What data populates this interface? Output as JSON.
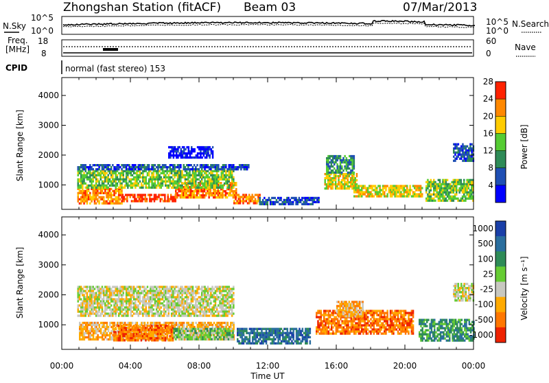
{
  "header": {
    "station_title": "Zhongshan Station (fitACF)",
    "beam": "Beam 03",
    "date": "07/Mar/2013"
  },
  "top_panels": {
    "nsky_label": "N.Sky",
    "nsky_ticks": [
      "10^5",
      "10^0"
    ],
    "nsearch_label": "N.Search",
    "nsearch_ticks": [
      "10^5",
      "10^0"
    ],
    "freq_label_line1": "Freq.",
    "freq_label_line2": "[MHz]",
    "freq_ticks": [
      "18",
      "8"
    ],
    "nave_label": "Nave",
    "nave_ticks": [
      "60",
      "0"
    ],
    "cpid_label": "CPID",
    "cpid_text": "normal (fast stereo) 153"
  },
  "chart_data": [
    {
      "type": "heatmap",
      "name": "power",
      "ylabel": "Slant Range [km]",
      "xlabel": "",
      "xlim": [
        0,
        24
      ],
      "ylim": [
        180,
        4600
      ],
      "yticks": [
        1000,
        2000,
        3000,
        4000
      ],
      "xticks": [
        0,
        4,
        8,
        12,
        16,
        20,
        24
      ],
      "colorbar": {
        "label": "Power [dB]",
        "ticks": [
          "4",
          "8",
          "12",
          "16",
          "20",
          "24",
          "28"
        ],
        "colors": [
          "#0000ff",
          "#1f4fb4",
          "#2e8b57",
          "#55cc33",
          "#ffcc00",
          "#ff8800",
          "#ff2200"
        ]
      },
      "regions": [
        {
          "t0": 0.9,
          "t1": 3.5,
          "r0": 400,
          "r1": 900,
          "level": 5
        },
        {
          "t0": 3.5,
          "t1": 6.6,
          "r0": 450,
          "r1": 700,
          "level": 6
        },
        {
          "t0": 6.6,
          "t1": 10.2,
          "r0": 600,
          "r1": 1100,
          "level": 5
        },
        {
          "t0": 0.9,
          "t1": 10.0,
          "r0": 900,
          "r1": 1500,
          "level": 3
        },
        {
          "t0": 0.9,
          "t1": 10.9,
          "r0": 1500,
          "r1": 1700,
          "level": 1
        },
        {
          "t0": 6.2,
          "t1": 8.8,
          "r0": 1900,
          "r1": 2300,
          "level": 0
        },
        {
          "t0": 10.0,
          "t1": 11.5,
          "r0": 400,
          "r1": 700,
          "level": 5
        },
        {
          "t0": 11.5,
          "t1": 15.0,
          "r0": 350,
          "r1": 600,
          "level": 1
        },
        {
          "t0": 15.3,
          "t1": 17.2,
          "r0": 900,
          "r1": 1400,
          "level": 4
        },
        {
          "t0": 15.4,
          "t1": 17.0,
          "r0": 1400,
          "r1": 2000,
          "level": 2
        },
        {
          "t0": 17.0,
          "t1": 21.0,
          "r0": 600,
          "r1": 1000,
          "level": 4
        },
        {
          "t0": 21.2,
          "t1": 24.0,
          "r0": 500,
          "r1": 1200,
          "level": 3
        },
        {
          "t0": 22.8,
          "t1": 24.0,
          "r0": 1800,
          "r1": 2400,
          "level": 1
        }
      ]
    },
    {
      "type": "heatmap",
      "name": "velocity",
      "ylabel": "Slant Range [km]",
      "xlabel": "Time UT",
      "xlim": [
        0,
        24
      ],
      "ylim": [
        180,
        4600
      ],
      "yticks": [
        1000,
        2000,
        3000,
        4000
      ],
      "xticks": [
        0,
        4,
        8,
        12,
        16,
        20,
        24
      ],
      "xtick_labels": [
        "00:00",
        "04:00",
        "08:00",
        "12:00",
        "16:00",
        "20:00",
        "00:00"
      ],
      "colorbar": {
        "label": "Velocity [m s⁻¹]",
        "ticks": [
          "1000",
          "500",
          "100",
          "25",
          "-25",
          "-100",
          "-500",
          "-1000"
        ],
        "colors": [
          "#1a3fa8",
          "#2a6e9e",
          "#2e8b57",
          "#66cc33",
          "#c8c8c0",
          "#ffaa00",
          "#ff7700",
          "#ee2200"
        ]
      },
      "regions": [
        {
          "t0": 0.9,
          "t1": 10.0,
          "r0": 1300,
          "r1": 2300,
          "level": 4
        },
        {
          "t0": 1.0,
          "t1": 10.0,
          "r0": 500,
          "r1": 1100,
          "level": 5
        },
        {
          "t0": 3.0,
          "t1": 6.5,
          "r0": 500,
          "r1": 1000,
          "level": 6
        },
        {
          "t0": 6.5,
          "t1": 10.0,
          "r0": 500,
          "r1": 900,
          "level": 3
        },
        {
          "t0": 10.2,
          "t1": 14.5,
          "r0": 400,
          "r1": 900,
          "level": 1
        },
        {
          "t0": 14.8,
          "t1": 20.5,
          "r0": 700,
          "r1": 1500,
          "level": 6
        },
        {
          "t0": 16.0,
          "t1": 17.5,
          "r0": 1300,
          "r1": 1800,
          "level": 5
        },
        {
          "t0": 20.8,
          "t1": 24.0,
          "r0": 500,
          "r1": 1200,
          "level": 2
        },
        {
          "t0": 22.8,
          "t1": 24.0,
          "r0": 1800,
          "r1": 2400,
          "level": 4
        }
      ]
    }
  ]
}
